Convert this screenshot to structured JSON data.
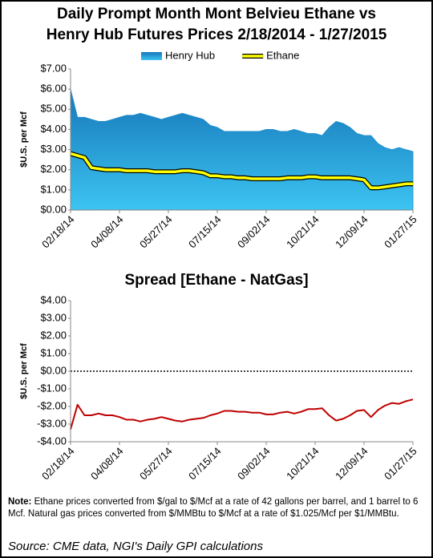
{
  "chart_data": [
    {
      "type": "line",
      "title": [
        "Daily Prompt Month Mont Belvieu Ethane vs",
        "Henry Hub Futures Prices 2/18/2014 - 1/27/2015"
      ],
      "ylabel": "$U.S. per Mcf",
      "legend": "top",
      "x": [
        "02/18/14",
        "02/25/14",
        "03/04/14",
        "03/11/14",
        "03/18/14",
        "03/25/14",
        "04/01/14",
        "04/08/14",
        "04/15/14",
        "04/22/14",
        "04/29/14",
        "05/06/14",
        "05/13/14",
        "05/20/14",
        "05/27/14",
        "06/03/14",
        "06/10/14",
        "06/17/14",
        "06/24/14",
        "07/01/14",
        "07/08/14",
        "07/15/14",
        "07/22/14",
        "07/29/14",
        "08/05/14",
        "08/12/14",
        "08/19/14",
        "08/26/14",
        "09/02/14",
        "09/09/14",
        "09/16/14",
        "09/23/14",
        "09/30/14",
        "10/07/14",
        "10/14/14",
        "10/21/14",
        "10/28/14",
        "11/04/14",
        "11/11/14",
        "11/18/14",
        "11/25/14",
        "12/02/14",
        "12/09/14",
        "12/16/14",
        "12/23/14",
        "12/30/14",
        "01/06/15",
        "01/13/15",
        "01/20/15",
        "01/27/15"
      ],
      "series": [
        {
          "name": "Henry Hub",
          "type": "area",
          "color": "#1e8ccc",
          "values": [
            6.0,
            4.6,
            4.6,
            4.5,
            4.4,
            4.4,
            4.5,
            4.6,
            4.7,
            4.7,
            4.8,
            4.7,
            4.6,
            4.5,
            4.6,
            4.7,
            4.8,
            4.7,
            4.6,
            4.5,
            4.2,
            4.1,
            3.9,
            3.9,
            3.9,
            3.9,
            3.9,
            3.9,
            4.0,
            4.0,
            3.9,
            3.9,
            4.0,
            3.9,
            3.8,
            3.8,
            3.7,
            4.1,
            4.4,
            4.3,
            4.1,
            3.8,
            3.7,
            3.7,
            3.3,
            3.1,
            3.0,
            3.1,
            3.0,
            2.9
          ]
        },
        {
          "name": "Ethane",
          "type": "line",
          "color": "#ffff00",
          "values": [
            2.8,
            2.7,
            2.6,
            2.1,
            2.05,
            2.0,
            2.0,
            2.0,
            1.95,
            1.95,
            1.95,
            1.95,
            1.9,
            1.9,
            1.9,
            1.9,
            1.95,
            1.95,
            1.9,
            1.85,
            1.7,
            1.7,
            1.65,
            1.65,
            1.6,
            1.6,
            1.55,
            1.55,
            1.55,
            1.55,
            1.55,
            1.6,
            1.6,
            1.6,
            1.65,
            1.65,
            1.6,
            1.6,
            1.6,
            1.6,
            1.6,
            1.55,
            1.5,
            1.1,
            1.1,
            1.15,
            1.2,
            1.25,
            1.3,
            1.3
          ]
        }
      ],
      "xlim": [
        "02/18/14",
        "01/27/15"
      ],
      "xticks": [
        "02/18/14",
        "04/08/14",
        "05/27/14",
        "07/15/14",
        "09/02/14",
        "10/21/14",
        "12/09/14",
        "01/27/15"
      ],
      "ylim": [
        0,
        7
      ],
      "yticks": [
        {
          "value": 0,
          "label": "$0.00"
        },
        {
          "value": 1,
          "label": "$1.00"
        },
        {
          "value": 2,
          "label": "$2.00"
        },
        {
          "value": 3,
          "label": "$3.00"
        },
        {
          "value": 4,
          "label": "$4.00"
        },
        {
          "value": 5,
          "label": "$5.00"
        },
        {
          "value": 6,
          "label": "$6.00"
        },
        {
          "value": 7,
          "label": "$7.00"
        }
      ]
    },
    {
      "type": "line",
      "title": [
        "Spread [Ethane - NatGas]"
      ],
      "ylabel": "$U.S. per Mcf",
      "negative_tick_color": "#c00000",
      "zero_line": "dotted",
      "x": [
        "02/18/14",
        "02/25/14",
        "03/04/14",
        "03/11/14",
        "03/18/14",
        "03/25/14",
        "04/01/14",
        "04/08/14",
        "04/15/14",
        "04/22/14",
        "04/29/14",
        "05/06/14",
        "05/13/14",
        "05/20/14",
        "05/27/14",
        "06/03/14",
        "06/10/14",
        "06/17/14",
        "06/24/14",
        "07/01/14",
        "07/08/14",
        "07/15/14",
        "07/22/14",
        "07/29/14",
        "08/05/14",
        "08/12/14",
        "08/19/14",
        "08/26/14",
        "09/02/14",
        "09/09/14",
        "09/16/14",
        "09/23/14",
        "09/30/14",
        "10/07/14",
        "10/14/14",
        "10/21/14",
        "10/28/14",
        "11/04/14",
        "11/11/14",
        "11/18/14",
        "11/25/14",
        "12/02/14",
        "12/09/14",
        "12/16/14",
        "12/23/14",
        "12/30/14",
        "01/06/15",
        "01/13/15",
        "01/20/15",
        "01/27/15"
      ],
      "series": [
        {
          "type": "line",
          "color": "#c00000",
          "values": [
            -3.3,
            -1.9,
            -2.5,
            -2.5,
            -2.4,
            -2.5,
            -2.5,
            -2.6,
            -2.75,
            -2.75,
            -2.85,
            -2.75,
            -2.7,
            -2.6,
            -2.7,
            -2.8,
            -2.85,
            -2.75,
            -2.7,
            -2.65,
            -2.5,
            -2.4,
            -2.25,
            -2.25,
            -2.3,
            -2.3,
            -2.35,
            -2.35,
            -2.45,
            -2.45,
            -2.35,
            -2.3,
            -2.4,
            -2.3,
            -2.15,
            -2.15,
            -2.1,
            -2.5,
            -2.8,
            -2.7,
            -2.5,
            -2.25,
            -2.2,
            -2.6,
            -2.2,
            -1.95,
            -1.8,
            -1.85,
            -1.7,
            -1.6
          ]
        }
      ],
      "xlim": [
        "02/18/14",
        "01/27/15"
      ],
      "xticks": [
        "02/18/14",
        "04/08/14",
        "05/27/14",
        "07/15/14",
        "09/02/14",
        "10/21/14",
        "12/09/14",
        "01/27/15"
      ],
      "ylim": [
        -4,
        4
      ],
      "yticks": [
        {
          "value": -4,
          "label": "-$4.00"
        },
        {
          "value": -3,
          "label": "-$3.00"
        },
        {
          "value": -2,
          "label": "-$2.00"
        },
        {
          "value": -1,
          "label": "-$1.00"
        },
        {
          "value": 0,
          "label": "$0.00"
        },
        {
          "value": 1,
          "label": "$1.00"
        },
        {
          "value": 2,
          "label": "$2.00"
        },
        {
          "value": 3,
          "label": "$3.00"
        },
        {
          "value": 4,
          "label": "$4.00"
        }
      ]
    }
  ],
  "note": {
    "label": "Note:",
    "text": "Ethane prices converted from $/gal to $/Mcf at a rate of 42 gallons per barrel, and 1 barrel to 6 Mcf. Natural gas prices converted from $/MMBtu to $/Mcf at a rate of $1.025/Mcf per $1/MMBtu."
  },
  "source": "Source: CME data, NGI's Daily GPI calculations"
}
